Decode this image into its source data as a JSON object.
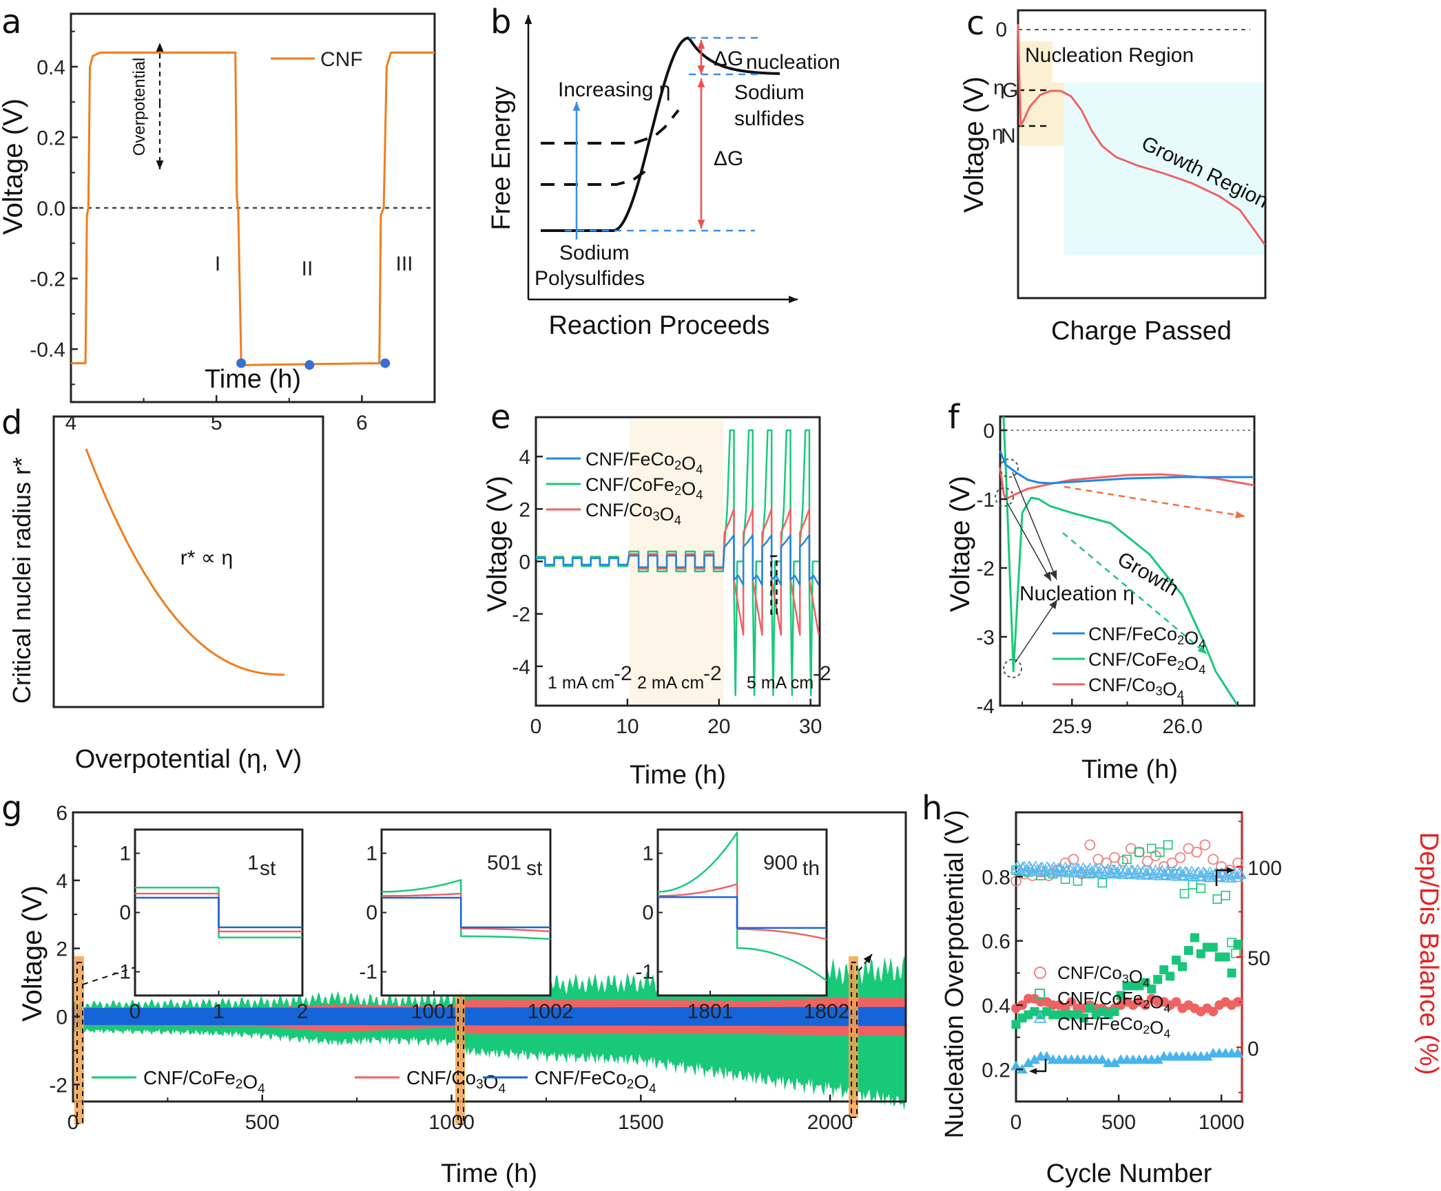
{
  "colors": {
    "orange": "#f07c1c",
    "blue": "#1e88e5",
    "green": "#18c97a",
    "red": "#f06262",
    "dotblue": "#3a6fd6",
    "pink": "#f08080",
    "nucleation_bg": "#fbf1d2",
    "growth_bg": "#e7fbfd",
    "rate2_bg": "#fdf6e8",
    "dashed_blue": "#3a8ee6",
    "red_text": "#f05050",
    "axis_red": "#e82020"
  },
  "chart_data": [
    {
      "panel": "a",
      "type": "line",
      "title": "",
      "xlabel": "Time (h)",
      "ylabel": "Voltage (V)",
      "xlim": [
        4,
        6.5
      ],
      "ylim": [
        -0.55,
        0.55
      ],
      "xticks": [
        "4",
        "5",
        "6"
      ],
      "yticks": [
        "-0.4",
        "-0.2",
        "0.0",
        "0.2",
        "0.4"
      ],
      "legend": {
        "position": "top-right",
        "entries": [
          "CNF"
        ]
      },
      "series": [
        {
          "name": "CNF",
          "x": [
            4.0,
            4.1,
            4.11,
            4.12,
            4.13,
            4.15,
            4.2,
            5.13,
            5.14,
            5.15,
            5.17,
            5.2,
            6.12,
            6.13,
            6.15,
            6.17,
            6.2,
            6.5
          ],
          "y": [
            -0.44,
            -0.44,
            -0.02,
            0.0,
            0.4,
            0.43,
            0.44,
            0.44,
            0.03,
            -0.01,
            -0.43,
            -0.445,
            -0.44,
            -0.02,
            0.0,
            0.4,
            0.44,
            0.44
          ]
        }
      ],
      "markers": {
        "x": [
          5.17,
          5.64,
          6.16
        ],
        "y": [
          -0.44,
          -0.445,
          -0.44
        ]
      },
      "annotations": [
        "Overpotential",
        "I",
        "II",
        "III"
      ],
      "hline": 0.0
    },
    {
      "panel": "b",
      "type": "line",
      "xlabel": "Reaction Proceeds",
      "ylabel": "Free Energy",
      "annotations": [
        "Increasing η",
        "Sodium",
        "Polysulfides",
        "Sodium",
        "sulfides",
        "ΔG",
        "ΔG",
        "nucleation"
      ]
    },
    {
      "panel": "c",
      "type": "line",
      "xlabel": "Charge Passed",
      "ylabel": "Voltage (V)",
      "yticks": [
        "0",
        "ηG",
        "ηN"
      ],
      "annotations": [
        "Nucleation Region",
        "Growth Region"
      ]
    },
    {
      "panel": "d",
      "type": "line",
      "xlabel": "Overpotential (η, V)",
      "ylabel": "Critical nuclei radius r*",
      "annotations": [
        "r* ∝ η"
      ]
    },
    {
      "panel": "e",
      "type": "line",
      "xlabel": "Time (h)",
      "ylabel": "Voltage (V)",
      "xlim": [
        0,
        31
      ],
      "ylim": [
        -5.5,
        5.5
      ],
      "xticks": [
        "0",
        "10",
        "20",
        "30"
      ],
      "yticks": [
        "-4",
        "-2",
        "0",
        "2",
        "4"
      ],
      "legend": {
        "position": "top-left",
        "entries": [
          "CNF/FeCo2O4",
          "CNF/CoFe2O4",
          "CNF/Co3O4"
        ]
      },
      "regions": [
        "1 mA cm-2",
        "2 mA cm-2",
        "5 mA cm-2"
      ],
      "series": [
        {
          "name": "CNF/FeCo2O4",
          "low_rate_amplitude": 0.12,
          "mid_rate_amplitude": 0.22,
          "high_rate_peak": 1.0,
          "high_rate_trough": -0.9
        },
        {
          "name": "CNF/CoFe2O4",
          "low_rate_amplitude": 0.18,
          "mid_rate_amplitude": 0.38,
          "high_rate_peak": 5.0,
          "high_rate_trough": -5.1
        },
        {
          "name": "CNF/Co3O4",
          "low_rate_amplitude": 0.14,
          "mid_rate_amplitude": 0.28,
          "high_rate_peak": 2.0,
          "high_rate_trough": -2.8
        }
      ]
    },
    {
      "panel": "f",
      "type": "line",
      "xlabel": "Time (h)",
      "ylabel": "Voltage (V)",
      "xlim": [
        25.835,
        26.065
      ],
      "ylim": [
        -4,
        0.2
      ],
      "xticks": [
        "25.9",
        "26.0"
      ],
      "yticks": [
        "-4",
        "-3",
        "-2",
        "-1",
        "0"
      ],
      "legend": {
        "position": "bottom-center",
        "entries": [
          "CNF/FeCo2O4",
          "CNF/CoFe2O4",
          "CNF/Co3O4"
        ]
      },
      "annotations": [
        "Nucleation η",
        "Growth"
      ],
      "series": [
        {
          "name": "CNF/FeCo2O4",
          "x": [
            25.835,
            25.84,
            25.85,
            25.86,
            25.87,
            25.88,
            25.9,
            25.95,
            26.0,
            26.065
          ],
          "y": [
            -0.3,
            -0.5,
            -0.62,
            -0.72,
            -0.76,
            -0.77,
            -0.75,
            -0.7,
            -0.68,
            -0.68
          ]
        },
        {
          "name": "CNF/CoFe2O4",
          "x": [
            25.838,
            25.84,
            25.847,
            25.855,
            25.863,
            25.87,
            25.88,
            25.9,
            25.935,
            25.97,
            26.0,
            26.02,
            26.03,
            26.05
          ],
          "y": [
            0.2,
            -0.5,
            -3.5,
            -1.2,
            -0.98,
            -1.0,
            -1.1,
            -1.2,
            -1.35,
            -1.8,
            -2.4,
            -3.1,
            -3.5,
            -4.0
          ]
        },
        {
          "name": "CNF/Co3O4",
          "x": [
            25.835,
            25.838,
            25.84,
            25.85,
            25.86,
            25.88,
            25.9,
            25.95,
            25.98,
            26.0,
            26.03,
            26.065
          ],
          "y": [
            -0.55,
            -0.9,
            -1.0,
            -0.92,
            -0.85,
            -0.78,
            -0.72,
            -0.65,
            -0.64,
            -0.66,
            -0.7,
            -0.8
          ]
        }
      ]
    },
    {
      "panel": "g",
      "type": "area",
      "xlabel": "Time (h)",
      "ylabel": "Voltage (V)",
      "xlim": [
        0,
        2200
      ],
      "ylim": [
        -2.5,
        6
      ],
      "xticks": [
        "0",
        "500",
        "1000",
        "1500",
        "2000"
      ],
      "yticks": [
        "-2",
        "0",
        "2",
        "4",
        "6"
      ],
      "legend": {
        "position": "bottom",
        "entries": [
          "CNF/CoFe2O4",
          "CNF/Co3O4",
          "CNF/FeCo2O4"
        ]
      },
      "series": [
        {
          "name": "CNF/CoFe2O4",
          "x": [
            0,
            300,
            500,
            700,
            800,
            1000,
            1050,
            1500,
            1800,
            2000,
            2200
          ],
          "upper": [
            0.35,
            0.38,
            0.42,
            0.55,
            0.45,
            0.5,
            0.9,
            1.0,
            1.2,
            1.3,
            1.4
          ],
          "lower": [
            -0.35,
            -0.38,
            -0.45,
            -0.65,
            -0.55,
            -0.6,
            -0.9,
            -1.1,
            -1.6,
            -1.9,
            -2.3
          ]
        },
        {
          "name": "CNF/Co3O4",
          "x": [
            0,
            500,
            700,
            1000,
            1050,
            1500,
            1800,
            2000,
            2200
          ],
          "upper": [
            0.25,
            0.26,
            0.35,
            0.3,
            0.5,
            0.5,
            0.45,
            0.55,
            0.55
          ],
          "lower": [
            -0.25,
            -0.28,
            -0.45,
            -0.3,
            -0.5,
            -0.5,
            -0.5,
            -0.55,
            -0.55
          ]
        },
        {
          "name": "CNF/FeCo2O4",
          "x": [
            0,
            2200
          ],
          "upper": [
            0.25,
            0.28
          ],
          "lower": [
            -0.25,
            -0.28
          ]
        }
      ],
      "insets": [
        {
          "label": "1",
          "suffix": "st",
          "xticks": [
            "0",
            "1",
            "2"
          ],
          "yticks": [
            "-1",
            "0",
            "1"
          ]
        },
        {
          "label": "501",
          "suffix": "st",
          "xticks": [
            "1001",
            "1002"
          ],
          "yticks": [
            "-1",
            "0",
            "1"
          ]
        },
        {
          "label": "900",
          "suffix": "th",
          "xticks": [
            "1801",
            "1802"
          ],
          "yticks": [
            "-1",
            "0",
            "1"
          ]
        }
      ],
      "highlight_times": [
        10,
        1020,
        1840
      ]
    },
    {
      "panel": "h",
      "type": "scatter",
      "xlabel": "Cycle Number",
      "ylabel": "Nucleation Overpotential (V)",
      "ylabel_right": "Dep/Dis Balance (%)",
      "xlim": [
        0,
        1100
      ],
      "ylim": [
        0.1,
        1.0
      ],
      "ylim_right": [
        -30,
        130
      ],
      "xticks": [
        "0",
        "500",
        "1000"
      ],
      "yticks": [
        "0.2",
        "0.4",
        "0.6",
        "0.8"
      ],
      "yticks_right": [
        "0",
        "50",
        "100"
      ],
      "legend": {
        "position": "middle-left",
        "entries": [
          "CNF/Co3O4",
          "CNF/CoFe2O4",
          "CNF/FeCo2O4"
        ]
      },
      "series": [
        {
          "name": "CNF/Co3O4 overpotential",
          "x": [
            0,
            30,
            60,
            90,
            120,
            150,
            180,
            210,
            240,
            270,
            300,
            330,
            360,
            390,
            420,
            450,
            480,
            510,
            540,
            570,
            600,
            630,
            660,
            690,
            720,
            750,
            780,
            810,
            840,
            870,
            900,
            930,
            960,
            990,
            1020,
            1050,
            1080
          ],
          "y": [
            0.39,
            0.4,
            0.42,
            0.42,
            0.41,
            0.41,
            0.4,
            0.4,
            0.39,
            0.41,
            0.39,
            0.39,
            0.4,
            0.39,
            0.39,
            0.38,
            0.39,
            0.4,
            0.41,
            0.4,
            0.41,
            0.4,
            0.42,
            0.41,
            0.41,
            0.4,
            0.41,
            0.39,
            0.4,
            0.39,
            0.38,
            0.39,
            0.38,
            0.4,
            0.41,
            0.4,
            0.41
          ]
        },
        {
          "name": "CNF/CoFe2O4 overpotential",
          "x": [
            0,
            30,
            60,
            90,
            120,
            150,
            180,
            210,
            240,
            270,
            300,
            330,
            360,
            390,
            420,
            450,
            480,
            510,
            540,
            570,
            600,
            630,
            660,
            690,
            720,
            750,
            780,
            810,
            840,
            870,
            900,
            930,
            960,
            990,
            1020,
            1050,
            1080
          ],
          "y": [
            0.34,
            0.36,
            0.37,
            0.38,
            0.37,
            0.38,
            0.37,
            0.37,
            0.37,
            0.37,
            0.37,
            0.36,
            0.39,
            0.37,
            0.38,
            0.37,
            0.38,
            0.43,
            0.46,
            0.46,
            0.46,
            0.47,
            0.45,
            0.48,
            0.51,
            0.49,
            0.54,
            0.52,
            0.57,
            0.61,
            0.56,
            0.58,
            0.58,
            0.55,
            0.55,
            0.5,
            0.59
          ]
        },
        {
          "name": "CNF/FeCo2O4 overpotential",
          "x": [
            0,
            30,
            60,
            90,
            120,
            150,
            180,
            210,
            240,
            270,
            300,
            330,
            360,
            390,
            420,
            450,
            480,
            510,
            540,
            570,
            600,
            630,
            660,
            690,
            720,
            750,
            780,
            810,
            840,
            870,
            900,
            930,
            960,
            990,
            1020,
            1050,
            1080
          ],
          "y": [
            0.21,
            0.2,
            0.22,
            0.23,
            0.24,
            0.24,
            0.23,
            0.23,
            0.23,
            0.23,
            0.23,
            0.23,
            0.23,
            0.23,
            0.23,
            0.22,
            0.22,
            0.23,
            0.23,
            0.23,
            0.23,
            0.23,
            0.23,
            0.23,
            0.24,
            0.24,
            0.24,
            0.24,
            0.24,
            0.24,
            0.24,
            0.24,
            0.25,
            0.25,
            0.25,
            0.25,
            0.25
          ]
        },
        {
          "name": "CNF/Co3O4 balance",
          "axis": "right",
          "x": [
            0,
            40,
            80,
            120,
            160,
            200,
            240,
            280,
            320,
            360,
            400,
            440,
            480,
            520,
            560,
            600,
            640,
            680,
            720,
            760,
            800,
            840,
            880,
            920,
            960,
            1000,
            1040,
            1080
          ],
          "y": [
            92,
            96,
            95,
            97,
            95,
            98,
            102,
            104,
            96,
            112,
            104,
            102,
            105,
            103,
            110,
            108,
            103,
            106,
            100,
            102,
            105,
            110,
            108,
            112,
            104,
            100,
            98,
            102
          ]
        },
        {
          "name": "CNF/CoFe2O4 balance",
          "axis": "right",
          "x": [
            0,
            60,
            120,
            180,
            240,
            300,
            360,
            420,
            480,
            540,
            600,
            660,
            700,
            740,
            780,
            820,
            860,
            900,
            940,
            980,
            1020,
            1050,
            1070
          ],
          "y": [
            98,
            97,
            95,
            96,
            93,
            92,
            96,
            91,
            96,
            104,
            108,
            110,
            108,
            112,
            96,
            85,
            90,
            88,
            94,
            82,
            84,
            58,
            52
          ]
        },
        {
          "name": "CNF/FeCo2O4 balance",
          "axis": "right",
          "x": [
            0,
            200,
            400,
            600,
            800,
            1000,
            1100
          ],
          "y": [
            99,
            98,
            97,
            97,
            96,
            96,
            95
          ]
        }
      ]
    }
  ]
}
